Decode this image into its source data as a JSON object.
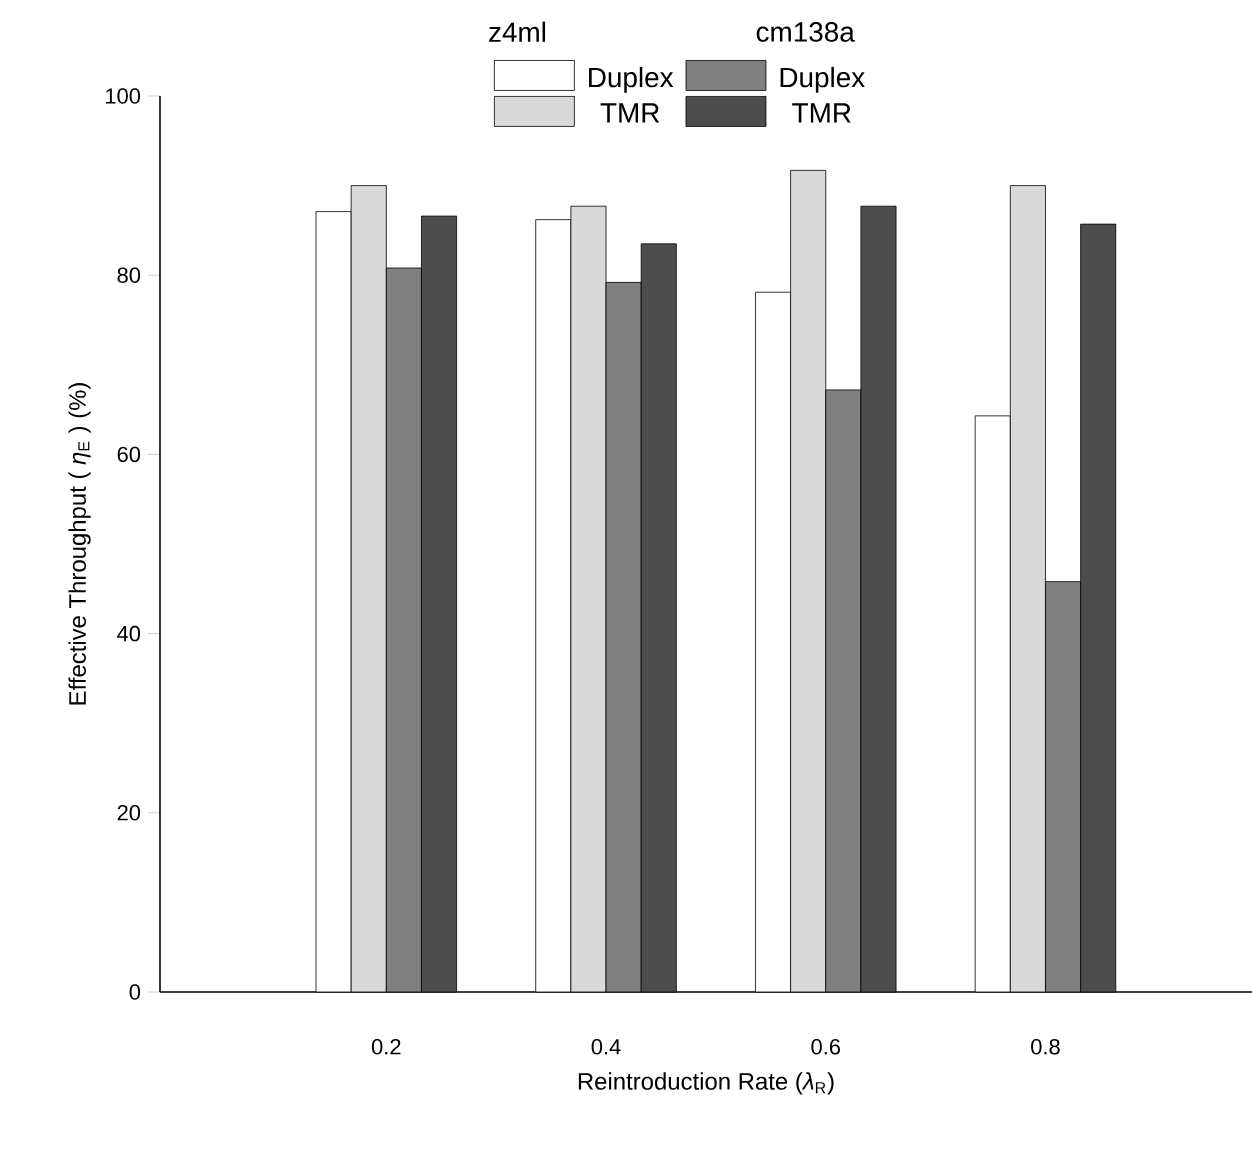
{
  "chart_data": {
    "type": "bar",
    "xlabel": "Reintroduction Rate (*λ*$_{R}$)",
    "ylabel": "Effective Throughput ( *η*$_{E}$ ) (%)",
    "categories": [
      "0.2",
      "0.4",
      "0.6",
      "0.8"
    ],
    "series": [
      {
        "name": "Duplex",
        "color": "#ffffff",
        "values": [
          87.1,
          86.2,
          78.1,
          64.3
        ]
      },
      {
        "name": "TMR",
        "color": "#d9d9d9",
        "values": [
          90,
          87.7,
          91.7,
          90
        ]
      },
      {
        "name": "Duplex",
        "color": "#808080",
        "values": [
          80.8,
          79.2,
          67.2,
          45.8
        ]
      },
      {
        "name": "TMR",
        "color": "#4d4d4d",
        "values": [
          86.6,
          83.5,
          87.7,
          85.7
        ]
      }
    ],
    "annotations": [
      "z4ml",
      "cm138a"
    ],
    "ylim": [
      0,
      100
    ],
    "yticks": [
      0,
      20,
      40,
      60,
      80,
      100
    ],
    "legend": "top",
    "grid": false
  }
}
